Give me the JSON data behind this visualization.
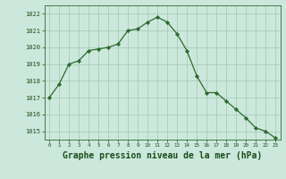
{
  "x": [
    0,
    1,
    2,
    3,
    4,
    5,
    6,
    7,
    8,
    9,
    10,
    11,
    12,
    13,
    14,
    15,
    16,
    17,
    18,
    19,
    20,
    21,
    22,
    23
  ],
  "y": [
    1017.0,
    1017.8,
    1019.0,
    1019.2,
    1019.8,
    1019.9,
    1020.0,
    1020.2,
    1021.0,
    1021.1,
    1021.5,
    1021.8,
    1021.5,
    1020.8,
    1019.8,
    1018.3,
    1017.3,
    1017.3,
    1016.8,
    1016.3,
    1015.8,
    1015.2,
    1015.0,
    1014.6
  ],
  "line_color": "#2d6a2d",
  "marker_color": "#2d6a2d",
  "bg_color": "#cce8dc",
  "grid_color": "#a0c8b0",
  "title": "Graphe pression niveau de la mer (hPa)",
  "title_color": "#1a4d1a",
  "title_fontsize": 7,
  "ylim_min": 1014.5,
  "ylim_max": 1022.5,
  "axis_color": "#2d6a2d",
  "tick_color": "#1a4d1a"
}
